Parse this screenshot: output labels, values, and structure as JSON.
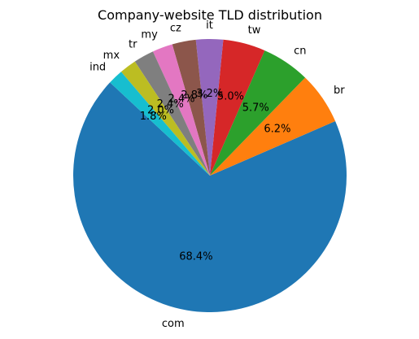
{
  "chart_data": {
    "type": "pie",
    "title": "Company-website TLD distribution",
    "start_angle_deg": 137,
    "direction": "counterclockwise",
    "slices": [
      {
        "label": "com",
        "value": 68.4,
        "pct_text": "68.4%",
        "color": "#1f77b4"
      },
      {
        "label": "br",
        "value": 6.2,
        "pct_text": "6.2%",
        "color": "#ff7f0e"
      },
      {
        "label": "cn",
        "value": 5.7,
        "pct_text": "5.7%",
        "color": "#2ca02c"
      },
      {
        "label": "tw",
        "value": 5.0,
        "pct_text": "5.0%",
        "color": "#d62728"
      },
      {
        "label": "it",
        "value": 3.2,
        "pct_text": "3.2%",
        "color": "#9467bd"
      },
      {
        "label": "cz",
        "value": 2.8,
        "pct_text": "2.8%",
        "color": "#8c564b"
      },
      {
        "label": "my",
        "value": 2.4,
        "pct_text": "2.4%",
        "color": "#e377c2"
      },
      {
        "label": "tr",
        "value": 2.4,
        "pct_text": "2.4%",
        "color": "#7f7f7f"
      },
      {
        "label": "mx",
        "value": 2.0,
        "pct_text": "2.0%",
        "color": "#bcbd22"
      },
      {
        "label": "ind",
        "value": 1.8,
        "pct_text": "1.8%",
        "color": "#17becf"
      }
    ]
  }
}
